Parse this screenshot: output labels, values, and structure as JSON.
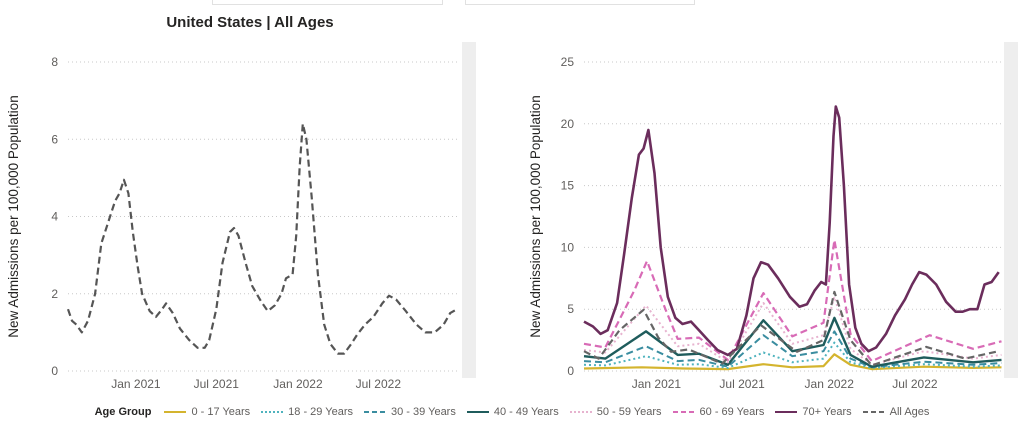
{
  "chart_data": [
    {
      "type": "line",
      "title": "United States | All Ages",
      "xlabel": "",
      "ylabel": "New Admissions per 100,000 Population",
      "ylim": [
        0,
        8
      ],
      "yticks": [
        "0",
        "2",
        "4",
        "6",
        "8"
      ],
      "xticks": [
        "Jan 2021",
        "Jul 2021",
        "Jan 2022",
        "Jul 2022"
      ],
      "xtick_dates": [
        "2021-01-01",
        "2021-07-01",
        "2022-01-01",
        "2022-07-01"
      ],
      "x_domain": [
        "2020-08-01",
        "2023-01-01"
      ],
      "grid": true,
      "series": [
        {
          "name": "All Ages",
          "color": "#555555",
          "dash": "dashed",
          "points": [
            [
              "2020-08-01",
              1.6
            ],
            [
              "2020-08-10",
              1.3
            ],
            [
              "2020-08-20",
              1.2
            ],
            [
              "2020-09-01",
              1.0
            ],
            [
              "2020-09-15",
              1.3
            ],
            [
              "2020-10-01",
              2.0
            ],
            [
              "2020-10-15",
              3.3
            ],
            [
              "2020-11-01",
              3.9
            ],
            [
              "2020-11-15",
              4.4
            ],
            [
              "2020-11-25",
              4.6
            ],
            [
              "2020-12-05",
              4.95
            ],
            [
              "2020-12-15",
              4.6
            ],
            [
              "2020-12-25",
              3.6
            ],
            [
              "2021-01-05",
              2.7
            ],
            [
              "2021-01-15",
              2.0
            ],
            [
              "2021-02-01",
              1.55
            ],
            [
              "2021-02-15",
              1.4
            ],
            [
              "2021-03-01",
              1.6
            ],
            [
              "2021-03-10",
              1.75
            ],
            [
              "2021-03-25",
              1.5
            ],
            [
              "2021-04-10",
              1.1
            ],
            [
              "2021-05-01",
              0.8
            ],
            [
              "2021-05-20",
              0.6
            ],
            [
              "2021-06-05",
              0.6
            ],
            [
              "2021-06-15",
              0.8
            ],
            [
              "2021-07-01",
              1.6
            ],
            [
              "2021-07-15",
              2.8
            ],
            [
              "2021-08-01",
              3.6
            ],
            [
              "2021-08-10",
              3.7
            ],
            [
              "2021-08-20",
              3.5
            ],
            [
              "2021-09-05",
              2.8
            ],
            [
              "2021-09-20",
              2.2
            ],
            [
              "2021-10-10",
              1.8
            ],
            [
              "2021-10-25",
              1.55
            ],
            [
              "2021-11-10",
              1.7
            ],
            [
              "2021-11-25",
              2.0
            ],
            [
              "2021-12-05",
              2.4
            ],
            [
              "2021-12-20",
              2.5
            ],
            [
              "2021-12-28",
              3.5
            ],
            [
              "2022-01-05",
              5.3
            ],
            [
              "2022-01-12",
              6.4
            ],
            [
              "2022-01-20",
              6.0
            ],
            [
              "2022-02-01",
              4.5
            ],
            [
              "2022-02-15",
              2.5
            ],
            [
              "2022-03-01",
              1.2
            ],
            [
              "2022-03-15",
              0.7
            ],
            [
              "2022-04-01",
              0.45
            ],
            [
              "2022-04-15",
              0.45
            ],
            [
              "2022-05-01",
              0.7
            ],
            [
              "2022-05-15",
              0.95
            ],
            [
              "2022-06-01",
              1.2
            ],
            [
              "2022-06-20",
              1.4
            ],
            [
              "2022-07-10",
              1.75
            ],
            [
              "2022-07-25",
              1.95
            ],
            [
              "2022-08-10",
              1.85
            ],
            [
              "2022-09-01",
              1.55
            ],
            [
              "2022-09-25",
              1.2
            ],
            [
              "2022-10-15",
              1.0
            ],
            [
              "2022-11-05",
              1.0
            ],
            [
              "2022-11-25",
              1.2
            ],
            [
              "2022-12-10",
              1.5
            ],
            [
              "2022-12-25",
              1.6
            ]
          ]
        }
      ]
    },
    {
      "type": "line",
      "title": "",
      "xlabel": "",
      "ylabel": "New Admissions per 100,000 Population",
      "ylim": [
        0,
        25
      ],
      "yticks": [
        "0",
        "5",
        "10",
        "15",
        "20",
        "25"
      ],
      "xticks": [
        "Jan 2021",
        "Jul 2021",
        "Jan 2022",
        "Jul 2022"
      ],
      "xtick_dates": [
        "2021-01-01",
        "2021-07-01",
        "2022-01-01",
        "2022-07-01"
      ],
      "x_domain": [
        "2020-08-01",
        "2023-01-01"
      ],
      "grid": true,
      "legend_title": "Age Group",
      "legend_position": "bottom",
      "series": [
        {
          "name": "0 - 17 Years",
          "color": "#d4b42e",
          "dash": "solid",
          "width": 2.2,
          "points": [
            [
              "2020-08-01",
              0.2
            ],
            [
              "2020-12-01",
              0.3
            ],
            [
              "2021-03-01",
              0.2
            ],
            [
              "2021-06-01",
              0.15
            ],
            [
              "2021-08-15",
              0.55
            ],
            [
              "2021-10-15",
              0.3
            ],
            [
              "2021-12-20",
              0.4
            ],
            [
              "2022-01-12",
              1.35
            ],
            [
              "2022-02-15",
              0.5
            ],
            [
              "2022-04-01",
              0.15
            ],
            [
              "2022-07-20",
              0.35
            ],
            [
              "2022-11-01",
              0.25
            ],
            [
              "2022-12-31",
              0.3
            ]
          ]
        },
        {
          "name": "18 - 29 Years",
          "color": "#4fb3be",
          "dash": "dotted",
          "width": 2,
          "points": [
            [
              "2020-08-01",
              0.5
            ],
            [
              "2020-09-15",
              0.45
            ],
            [
              "2020-12-10",
              1.2
            ],
            [
              "2021-02-15",
              0.5
            ],
            [
              "2021-04-01",
              0.55
            ],
            [
              "2021-06-01",
              0.25
            ],
            [
              "2021-08-15",
              1.5
            ],
            [
              "2021-10-15",
              0.7
            ],
            [
              "2021-12-20",
              1.0
            ],
            [
              "2022-01-12",
              2.3
            ],
            [
              "2022-02-15",
              0.7
            ],
            [
              "2022-04-01",
              0.25
            ],
            [
              "2022-07-20",
              0.55
            ],
            [
              "2022-11-01",
              0.35
            ],
            [
              "2022-12-31",
              0.45
            ]
          ]
        },
        {
          "name": "30 - 39 Years",
          "color": "#3a8da0",
          "dash": "dashed",
          "width": 2,
          "points": [
            [
              "2020-08-01",
              0.8
            ],
            [
              "2020-09-15",
              0.7
            ],
            [
              "2020-12-10",
              2.0
            ],
            [
              "2021-02-15",
              0.8
            ],
            [
              "2021-04-01",
              0.9
            ],
            [
              "2021-06-01",
              0.35
            ],
            [
              "2021-08-15",
              2.9
            ],
            [
              "2021-10-15",
              1.2
            ],
            [
              "2021-12-20",
              1.6
            ],
            [
              "2022-01-12",
              3.2
            ],
            [
              "2022-02-15",
              1.0
            ],
            [
              "2022-04-01",
              0.3
            ],
            [
              "2022-07-20",
              0.75
            ],
            [
              "2022-11-01",
              0.5
            ],
            [
              "2022-12-31",
              0.65
            ]
          ]
        },
        {
          "name": "40 - 49 Years",
          "color": "#1f5c5c",
          "dash": "solid",
          "width": 2.4,
          "points": [
            [
              "2020-08-01",
              1.2
            ],
            [
              "2020-09-15",
              1.0
            ],
            [
              "2020-12-10",
              3.2
            ],
            [
              "2021-02-15",
              1.3
            ],
            [
              "2021-04-01",
              1.4
            ],
            [
              "2021-06-01",
              0.5
            ],
            [
              "2021-08-15",
              4.1
            ],
            [
              "2021-10-15",
              1.6
            ],
            [
              "2021-12-20",
              2.1
            ],
            [
              "2022-01-12",
              4.3
            ],
            [
              "2022-02-15",
              1.3
            ],
            [
              "2022-04-01",
              0.35
            ],
            [
              "2022-07-20",
              1.1
            ],
            [
              "2022-11-01",
              0.7
            ],
            [
              "2022-12-31",
              0.9
            ]
          ]
        },
        {
          "name": "50 - 59 Years",
          "color": "#e7b3cf",
          "dash": "dotted",
          "width": 2,
          "points": [
            [
              "2020-08-01",
              1.7
            ],
            [
              "2020-09-15",
              1.5
            ],
            [
              "2020-12-10",
              5.3
            ],
            [
              "2021-02-15",
              2.0
            ],
            [
              "2021-04-01",
              2.2
            ],
            [
              "2021-06-01",
              0.7
            ],
            [
              "2021-08-15",
              5.5
            ],
            [
              "2021-10-15",
              2.2
            ],
            [
              "2021-12-20",
              2.9
            ],
            [
              "2022-01-12",
              6.0
            ],
            [
              "2022-02-15",
              1.8
            ],
            [
              "2022-04-01",
              0.5
            ],
            [
              "2022-07-20",
              1.6
            ],
            [
              "2022-11-01",
              1.0
            ],
            [
              "2022-12-31",
              1.3
            ]
          ]
        },
        {
          "name": "60 - 69 Years",
          "color": "#d86bb6",
          "dash": "dashed",
          "width": 2.2,
          "points": [
            [
              "2020-08-01",
              2.2
            ],
            [
              "2020-09-15",
              1.9
            ],
            [
              "2020-11-15",
              6.5
            ],
            [
              "2020-12-12",
              8.9
            ],
            [
              "2021-01-20",
              5.0
            ],
            [
              "2021-02-15",
              2.6
            ],
            [
              "2021-04-01",
              2.7
            ],
            [
              "2021-06-01",
              0.9
            ],
            [
              "2021-08-15",
              6.3
            ],
            [
              "2021-10-15",
              2.8
            ],
            [
              "2021-12-20",
              3.9
            ],
            [
              "2022-01-12",
              10.6
            ],
            [
              "2022-02-15",
              3.0
            ],
            [
              "2022-04-01",
              0.8
            ],
            [
              "2022-08-01",
              2.9
            ],
            [
              "2022-11-01",
              1.8
            ],
            [
              "2022-12-31",
              2.4
            ]
          ]
        },
        {
          "name": "70+ Years",
          "color": "#6b2d5c",
          "dash": "solid",
          "width": 2.6,
          "points": [
            [
              "2020-08-01",
              4.0
            ],
            [
              "2020-08-20",
              3.6
            ],
            [
              "2020-09-05",
              3.0
            ],
            [
              "2020-09-20",
              3.3
            ],
            [
              "2020-10-10",
              5.5
            ],
            [
              "2020-10-25",
              9.5
            ],
            [
              "2020-11-10",
              14.0
            ],
            [
              "2020-11-25",
              17.5
            ],
            [
              "2020-12-05",
              18.0
            ],
            [
              "2020-12-15",
              19.5
            ],
            [
              "2020-12-28",
              16.0
            ],
            [
              "2021-01-10",
              10.0
            ],
            [
              "2021-01-25",
              6.0
            ],
            [
              "2021-02-10",
              4.3
            ],
            [
              "2021-02-25",
              3.8
            ],
            [
              "2021-03-15",
              4.0
            ],
            [
              "2021-04-01",
              3.3
            ],
            [
              "2021-04-20",
              2.5
            ],
            [
              "2021-05-10",
              1.7
            ],
            [
              "2021-06-01",
              1.3
            ],
            [
              "2021-06-20",
              1.8
            ],
            [
              "2021-07-10",
              4.5
            ],
            [
              "2021-07-25",
              7.5
            ],
            [
              "2021-08-10",
              8.8
            ],
            [
              "2021-08-25",
              8.6
            ],
            [
              "2021-09-15",
              7.5
            ],
            [
              "2021-10-10",
              6.0
            ],
            [
              "2021-10-30",
              5.2
            ],
            [
              "2021-11-15",
              5.4
            ],
            [
              "2021-12-01",
              6.5
            ],
            [
              "2021-12-15",
              7.2
            ],
            [
              "2021-12-25",
              7.0
            ],
            [
              "2022-01-02",
              12.0
            ],
            [
              "2022-01-10",
              19.0
            ],
            [
              "2022-01-15",
              21.4
            ],
            [
              "2022-01-22",
              20.5
            ],
            [
              "2022-02-01",
              15.0
            ],
            [
              "2022-02-12",
              7.0
            ],
            [
              "2022-02-25",
              3.5
            ],
            [
              "2022-03-10",
              2.2
            ],
            [
              "2022-03-25",
              1.6
            ],
            [
              "2022-04-10",
              1.9
            ],
            [
              "2022-05-01",
              3.0
            ],
            [
              "2022-05-20",
              4.5
            ],
            [
              "2022-06-10",
              5.8
            ],
            [
              "2022-06-25",
              7.0
            ],
            [
              "2022-07-10",
              8.0
            ],
            [
              "2022-07-25",
              7.8
            ],
            [
              "2022-08-15",
              7.0
            ],
            [
              "2022-09-05",
              5.6
            ],
            [
              "2022-09-25",
              4.8
            ],
            [
              "2022-10-10",
              4.8
            ],
            [
              "2022-10-25",
              5.0
            ],
            [
              "2022-11-10",
              5.0
            ],
            [
              "2022-11-25",
              7.0
            ],
            [
              "2022-12-10",
              7.2
            ],
            [
              "2022-12-25",
              8.0
            ]
          ]
        },
        {
          "name": "All Ages",
          "color": "#666666",
          "dash": "dashed",
          "width": 2.2,
          "points": [
            [
              "2020-08-01",
              1.6
            ],
            [
              "2020-09-01",
              1.0
            ],
            [
              "2020-10-15",
              3.3
            ],
            [
              "2020-12-05",
              4.95
            ],
            [
              "2021-01-05",
              2.7
            ],
            [
              "2021-02-01",
              1.55
            ],
            [
              "2021-03-10",
              1.75
            ],
            [
              "2021-05-20",
              0.6
            ],
            [
              "2021-08-10",
              3.7
            ],
            [
              "2021-10-25",
              1.55
            ],
            [
              "2021-12-20",
              2.5
            ],
            [
              "2022-01-12",
              6.4
            ],
            [
              "2022-02-15",
              2.5
            ],
            [
              "2022-04-01",
              0.45
            ],
            [
              "2022-07-25",
              1.95
            ],
            [
              "2022-10-15",
              1.0
            ],
            [
              "2022-12-25",
              1.6
            ]
          ]
        }
      ]
    }
  ]
}
